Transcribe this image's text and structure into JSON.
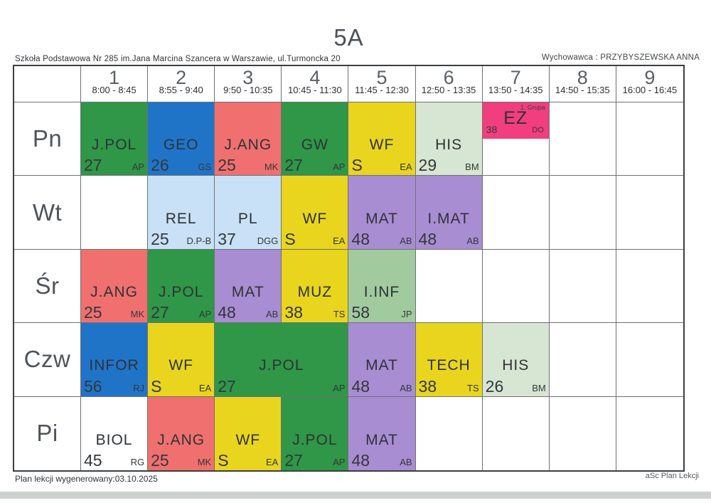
{
  "title": "5A",
  "header": {
    "school": "Szkoła Podstawowa Nr 285 im.Jana Marcina Szancera w Warszawie, ul.Turmoncka 20",
    "homeroom": "Wychowawca : PRZYBYSZEWSKA ANNA"
  },
  "periods": [
    {
      "num": "1",
      "time": "8:00 - 8:45"
    },
    {
      "num": "2",
      "time": "8:55 - 9:40"
    },
    {
      "num": "3",
      "time": "9:50 - 10:35"
    },
    {
      "num": "4",
      "time": "10:45 - 11:30"
    },
    {
      "num": "5",
      "time": "11:45 - 12:30"
    },
    {
      "num": "6",
      "time": "12:50 - 13:35"
    },
    {
      "num": "7",
      "time": "13:50 - 14:35"
    },
    {
      "num": "8",
      "time": "14:50 - 15:35"
    },
    {
      "num": "9",
      "time": "16:00 - 16:45"
    }
  ],
  "colors": {
    "green": "#2f9747",
    "blue": "#2074c8",
    "salmon": "#f0706f",
    "yellow": "#e9d51e",
    "palegreen": "#d7e6d2",
    "lightblue": "#c8e1f6",
    "purple": "#a98dd2",
    "sage": "#a1ca9f",
    "pink": "#f13e7e",
    "white": "#ffffff"
  },
  "days": [
    {
      "label": "Pn",
      "lessons": [
        {
          "period": 1,
          "subject": "J.POL",
          "room": "27",
          "teacher": "AP",
          "color": "green"
        },
        {
          "period": 2,
          "subject": "GEO",
          "room": "26",
          "teacher": "GS",
          "color": "blue"
        },
        {
          "period": 3,
          "subject": "J.ANG",
          "room": "25",
          "teacher": "MK",
          "color": "salmon"
        },
        {
          "period": 4,
          "subject": "GW",
          "room": "27",
          "teacher": "AP",
          "color": "green"
        },
        {
          "period": 5,
          "subject": "WF",
          "room": "S",
          "teacher": "EA",
          "color": "yellow"
        },
        {
          "period": 6,
          "subject": "HIS",
          "room": "29",
          "teacher": "BM",
          "color": "palegreen"
        },
        {
          "period": 7,
          "subject": "EZ",
          "room": "38",
          "teacher": "DO",
          "color": "pink",
          "group": "1. Grupa",
          "half": true
        }
      ]
    },
    {
      "label": "Wt",
      "lessons": [
        {
          "period": 2,
          "subject": "REL",
          "room": "25",
          "teacher": "D.P-B",
          "color": "lightblue"
        },
        {
          "period": 3,
          "subject": "PL",
          "room": "37",
          "teacher": "DGG",
          "color": "lightblue"
        },
        {
          "period": 4,
          "subject": "WF",
          "room": "S",
          "teacher": "EA",
          "color": "yellow"
        },
        {
          "period": 5,
          "subject": "MAT",
          "room": "48",
          "teacher": "AB",
          "color": "purple"
        },
        {
          "period": 6,
          "subject": "I.MAT",
          "room": "48",
          "teacher": "AB",
          "color": "purple"
        }
      ]
    },
    {
      "label": "Śr",
      "lessons": [
        {
          "period": 1,
          "subject": "J.ANG",
          "room": "25",
          "teacher": "MK",
          "color": "salmon"
        },
        {
          "period": 2,
          "subject": "J.POL",
          "room": "27",
          "teacher": "AP",
          "color": "green"
        },
        {
          "period": 3,
          "subject": "MAT",
          "room": "48",
          "teacher": "AB",
          "color": "purple"
        },
        {
          "period": 4,
          "subject": "MUZ",
          "room": "38",
          "teacher": "TS",
          "color": "yellow"
        },
        {
          "period": 5,
          "subject": "I.INF",
          "room": "58",
          "teacher": "JP",
          "color": "sage"
        }
      ]
    },
    {
      "label": "Czw",
      "lessons": [
        {
          "period": 1,
          "subject": "INFOR",
          "room": "56",
          "teacher": "RJ",
          "color": "blue"
        },
        {
          "period": 2,
          "subject": "WF",
          "room": "S",
          "teacher": "EA",
          "color": "yellow"
        },
        {
          "period": 3,
          "subject": "J.POL",
          "room": "27",
          "teacher": "AP",
          "color": "green",
          "span": 2
        },
        {
          "period": 5,
          "subject": "MAT",
          "room": "48",
          "teacher": "AB",
          "color": "purple"
        },
        {
          "period": 6,
          "subject": "TECH",
          "room": "38",
          "teacher": "TS",
          "color": "yellow"
        },
        {
          "period": 7,
          "subject": "HIS",
          "room": "26",
          "teacher": "BM",
          "color": "palegreen"
        }
      ]
    },
    {
      "label": "Pi",
      "lessons": [
        {
          "period": 1,
          "subject": "BIOL",
          "room": "45",
          "teacher": "RG",
          "color": "white"
        },
        {
          "period": 2,
          "subject": "J.ANG",
          "room": "25",
          "teacher": "MK",
          "color": "salmon"
        },
        {
          "period": 3,
          "subject": "WF",
          "room": "S",
          "teacher": "EA",
          "color": "yellow"
        },
        {
          "period": 4,
          "subject": "J.POL",
          "room": "27",
          "teacher": "AP",
          "color": "green"
        },
        {
          "period": 5,
          "subject": "MAT",
          "room": "48",
          "teacher": "AB",
          "color": "purple"
        }
      ]
    }
  ],
  "footer": {
    "left": "Plan lekcji wygenerowany:03.10.2025",
    "right": "aSc Plan Lekcji"
  }
}
